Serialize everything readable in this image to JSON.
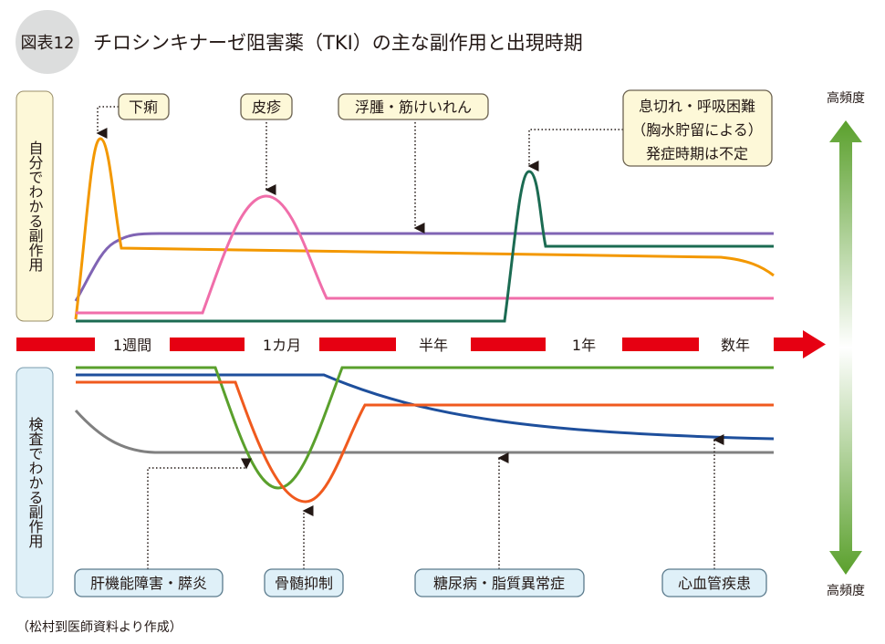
{
  "figure": {
    "badge": "図表12",
    "title": "チロシンキナーゼ阻害薬（TKI）の主な副作用と出現時期",
    "source": "（松村到医師資料より作成）"
  },
  "panels": {
    "top_label": "自分でわかる副作用",
    "bottom_label": "検査でわかる副作用"
  },
  "timeline": [
    "1週間",
    "1カ月",
    "半年",
    "1年",
    "数年"
  ],
  "frequency": {
    "top": "高頻度",
    "bottom": "高頻度"
  },
  "top_callouts": [
    {
      "label": "下痢",
      "color": "#f39800"
    },
    {
      "label": "皮疹",
      "color": "#f06eaa"
    },
    {
      "label": "浮腫・筋けいれん",
      "color": "#8064b4"
    },
    {
      "lines": [
        "息切れ・呼吸困難",
        "（胸水貯留による）",
        "発症時期は不定"
      ],
      "color": "#1b6b52"
    }
  ],
  "bottom_callouts": [
    {
      "label": "肝機能障害・膵炎",
      "color": "#5aa02c"
    },
    {
      "label": "骨髄抑制",
      "color": "#f05a1e"
    },
    {
      "label": "糖尿病・脂質異常症",
      "color": "#808080"
    },
    {
      "label": "心血管疾患",
      "color": "#1e4f9c"
    }
  ],
  "colors": {
    "timeline": "#e60012",
    "top_panel": "#fdf8d8",
    "bottom_panel": "#dff0f8",
    "frequency_arrow": "#5aa02c"
  }
}
